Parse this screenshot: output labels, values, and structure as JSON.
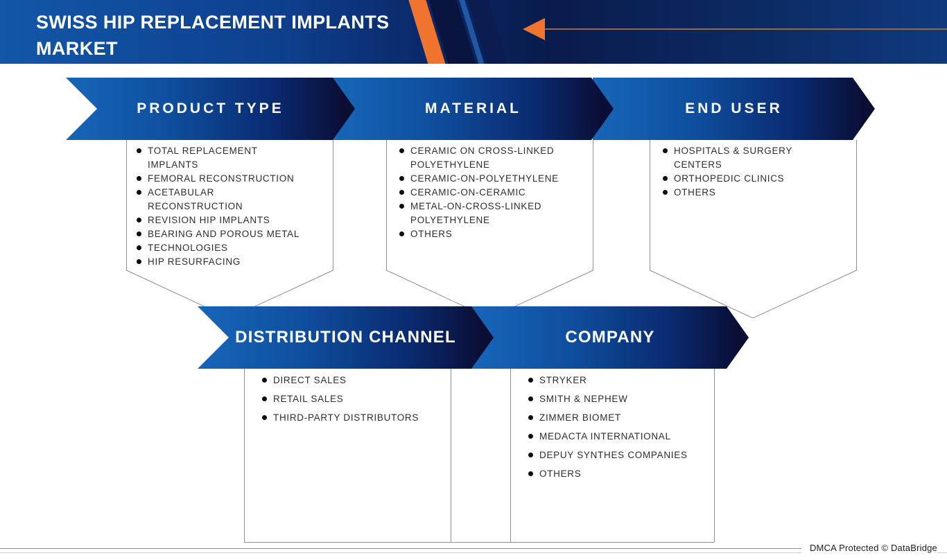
{
  "header": {
    "title_line1": "SWISS HIP REPLACEMENT IMPLANTS",
    "title_line2": "MARKET"
  },
  "icons": {
    "header_arrow": "left-arrow"
  },
  "colors": {
    "accent_orange": "#f0732e",
    "banner_blue": "#1766b8",
    "banner_navy": "#0a0e35",
    "header_blue": "#1257a8",
    "line_gray": "#8f8f8f",
    "text_dark": "#2d2d2d"
  },
  "sections": {
    "product_type": {
      "label": "PRODUCT TYPE",
      "items": [
        "TOTAL REPLACEMENT\nIMPLANTS",
        "FEMORAL RECONSTRUCTION",
        "ACETABULAR\nRECONSTRUCTION",
        "REVISION HIP IMPLANTS",
        "BEARING AND POROUS METAL",
        "TECHNOLOGIES",
        "HIP RESURFACING"
      ]
    },
    "material": {
      "label": "MATERIAL",
      "items": [
        "CERAMIC ON CROSS-LINKED\nPOLYETHYLENE",
        "CERAMIC-ON-POLYETHYLENE",
        "CERAMIC-ON-CERAMIC",
        "METAL-ON-CROSS-LINKED\nPOLYETHYLENE",
        "OTHERS"
      ]
    },
    "end_user": {
      "label": "END USER",
      "items": [
        "HOSPITALS & SURGERY\nCENTERS",
        "ORTHOPEDIC CLINICS",
        "OTHERS"
      ]
    },
    "distribution_channel": {
      "label": "DISTRIBUTION CHANNEL",
      "items": [
        "DIRECT SALES",
        "RETAIL SALES",
        "THIRD-PARTY DISTRIBUTORS"
      ]
    },
    "company": {
      "label": "COMPANY",
      "items": [
        "STRYKER",
        "SMITH & NEPHEW",
        "ZIMMER BIOMET",
        "MEDACTA INTERNATIONAL",
        "DEPUY SYNTHES COMPANIES",
        "OTHERS"
      ]
    }
  },
  "footer": {
    "dmca": "DMCA Protected © DataBridge"
  }
}
